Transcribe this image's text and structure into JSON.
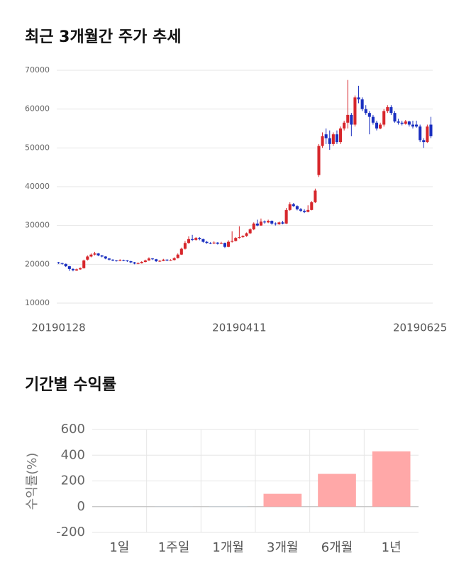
{
  "chart_data": [
    {
      "type": "candlestick",
      "title": "최근 3개월간 주가 추세",
      "categories": [
        "20190128",
        null,
        null,
        null,
        null,
        null,
        null,
        null,
        null,
        null,
        null,
        null,
        null,
        null,
        null,
        null,
        null,
        null,
        null,
        null,
        null,
        null,
        null,
        null,
        null,
        null,
        null,
        null,
        null,
        null,
        null,
        null,
        null,
        null,
        null,
        null,
        null,
        null,
        null,
        null,
        null,
        null,
        null,
        null,
        null,
        null,
        null,
        null,
        null,
        null,
        "20190411",
        null,
        null,
        null,
        null,
        null,
        null,
        null,
        null,
        null,
        null,
        null,
        null,
        null,
        null,
        null,
        null,
        null,
        null,
        null,
        null,
        null,
        null,
        null,
        null,
        null,
        null,
        null,
        null,
        null,
        null,
        null,
        null,
        null,
        null,
        null,
        null,
        null,
        null,
        null,
        null,
        null,
        null,
        null,
        null,
        null,
        null,
        null,
        null,
        null,
        "20190625",
        null,
        null,
        null
      ],
      "ohlc": [
        [
          20500,
          20600,
          20100,
          20300
        ],
        [
          20300,
          20400,
          19900,
          20100
        ],
        [
          20100,
          20200,
          19300,
          19500
        ],
        [
          19500,
          19600,
          18300,
          18800
        ],
        [
          18800,
          19000,
          18200,
          18500
        ],
        [
          18400,
          18900,
          18300,
          18700
        ],
        [
          18700,
          19200,
          18600,
          19000
        ],
        [
          19000,
          21200,
          18900,
          21000
        ],
        [
          21200,
          22300,
          21000,
          22000
        ],
        [
          22000,
          22800,
          21800,
          22500
        ],
        [
          22500,
          23200,
          22300,
          22800
        ],
        [
          22800,
          22900,
          22100,
          22300
        ],
        [
          22300,
          22400,
          21800,
          22000
        ],
        [
          22000,
          22100,
          21300,
          21500
        ],
        [
          21500,
          21600,
          21000,
          21200
        ],
        [
          21200,
          21300,
          20800,
          21000
        ],
        [
          21000,
          21100,
          20700,
          20900
        ],
        [
          20900,
          21300,
          20800,
          21100
        ],
        [
          21100,
          21200,
          20800,
          21000
        ],
        [
          21000,
          21100,
          20600,
          20800
        ],
        [
          20800,
          20900,
          20300,
          20500
        ],
        [
          20500,
          20600,
          20000,
          20200
        ],
        [
          20100,
          20500,
          20000,
          20300
        ],
        [
          20300,
          20800,
          20200,
          20600
        ],
        [
          20600,
          21200,
          20500,
          21000
        ],
        [
          21000,
          21800,
          20900,
          21500
        ],
        [
          21500,
          21600,
          21100,
          21300
        ],
        [
          21300,
          21400,
          20600,
          20800
        ],
        [
          20700,
          21100,
          20600,
          20900
        ],
        [
          20900,
          21400,
          20800,
          21200
        ],
        [
          21200,
          21300,
          20800,
          21000
        ],
        [
          21000,
          21300,
          20900,
          21100
        ],
        [
          21100,
          21800,
          21000,
          21600
        ],
        [
          21600,
          22800,
          21500,
          22500
        ],
        [
          22500,
          24300,
          22400,
          24000
        ],
        [
          24000,
          26000,
          23800,
          25500
        ],
        [
          25500,
          27200,
          25300,
          26500
        ],
        [
          26500,
          27600,
          26000,
          26300
        ],
        [
          26300,
          27000,
          26100,
          26800
        ],
        [
          26800,
          27000,
          26200,
          26500
        ],
        [
          26500,
          26600,
          25600,
          25800
        ],
        [
          25800,
          26000,
          25300,
          25500
        ],
        [
          25500,
          25700,
          25200,
          25400
        ],
        [
          25400,
          25900,
          25200,
          25600
        ],
        [
          25600,
          25700,
          25100,
          25300
        ],
        [
          25300,
          25800,
          25200,
          25500
        ],
        [
          25500,
          25600,
          24200,
          24500
        ],
        [
          24500,
          26200,
          24400,
          25800
        ],
        [
          25800,
          28500,
          25600,
          26000
        ],
        [
          26000,
          27000,
          25900,
          26800
        ],
        [
          26800,
          29800,
          26600,
          27000
        ],
        [
          27000,
          27500,
          26800,
          27300
        ],
        [
          27300,
          28200,
          27100,
          28000
        ],
        [
          28000,
          29300,
          27800,
          29000
        ],
        [
          29000,
          30800,
          28800,
          30500
        ],
        [
          30500,
          31500,
          29800,
          30000
        ],
        [
          30000,
          31800,
          29900,
          31000
        ],
        [
          31000,
          31300,
          30500,
          30800
        ],
        [
          30800,
          31500,
          30600,
          31200
        ],
        [
          31200,
          31300,
          30200,
          30500
        ],
        [
          30500,
          30800,
          30000,
          30300
        ],
        [
          30300,
          31000,
          30200,
          30800
        ],
        [
          30800,
          31200,
          30300,
          30500
        ],
        [
          30500,
          34500,
          30400,
          34000
        ],
        [
          34000,
          36000,
          33800,
          35500
        ],
        [
          35500,
          35800,
          34800,
          35000
        ],
        [
          35000,
          35200,
          33900,
          34200
        ],
        [
          34200,
          34500,
          33500,
          33800
        ],
        [
          33800,
          34200,
          33200,
          33500
        ],
        [
          33500,
          35200,
          33400,
          34000
        ],
        [
          34000,
          36300,
          33900,
          36000
        ],
        [
          36000,
          39500,
          35800,
          39000
        ],
        [
          43000,
          51000,
          42500,
          50500
        ],
        [
          50500,
          54000,
          50000,
          53000
        ],
        [
          53500,
          55000,
          51000,
          52500
        ],
        [
          52500,
          54500,
          49500,
          51000
        ],
        [
          51000,
          54000,
          50500,
          53500
        ],
        [
          53500,
          54500,
          51000,
          51500
        ],
        [
          51500,
          55500,
          51000,
          55000
        ],
        [
          55000,
          57000,
          54500,
          56500
        ],
        [
          56500,
          67500,
          55000,
          58500
        ],
        [
          58500,
          59000,
          53000,
          56000
        ],
        [
          56000,
          63500,
          55500,
          63000
        ],
        [
          63000,
          66000,
          61500,
          62500
        ],
        [
          62500,
          63000,
          59500,
          60000
        ],
        [
          60000,
          61000,
          58500,
          59000
        ],
        [
          59000,
          59500,
          53500,
          58000
        ],
        [
          58000,
          58500,
          56000,
          56500
        ],
        [
          56500,
          57000,
          54500,
          55000
        ],
        [
          55000,
          56500,
          54800,
          56000
        ],
        [
          56000,
          60000,
          55500,
          59500
        ],
        [
          59500,
          61000,
          59000,
          60500
        ],
        [
          60500,
          61000,
          58500,
          59000
        ],
        [
          59000,
          59500,
          56500,
          56800
        ],
        [
          56800,
          57500,
          56000,
          56500
        ],
        [
          56500,
          57000,
          55800,
          56200
        ],
        [
          56200,
          57200,
          56000,
          56800
        ],
        [
          56800,
          57000,
          55500,
          56000
        ],
        [
          56000,
          57000,
          55000,
          55500
        ],
        [
          56000,
          57000,
          55200,
          55500
        ],
        [
          55500,
          56000,
          51500,
          52000
        ],
        [
          52000,
          52500,
          50000,
          51500
        ],
        [
          51500,
          56000,
          51300,
          55500
        ],
        [
          56000,
          58000,
          52500,
          53000
        ]
      ],
      "up_color": "#d7262b",
      "down_color": "#1a2fc0",
      "ylim": [
        10000,
        70000
      ],
      "yticks": [
        10000,
        20000,
        30000,
        40000,
        50000,
        60000,
        70000
      ],
      "grid": true
    },
    {
      "type": "bar",
      "title": "기간별 수익률",
      "ylabel": "수익률(%)",
      "categories": [
        "1일",
        "1주일",
        "1개월",
        "3개월",
        "6개월",
        "1년"
      ],
      "values": [
        0,
        -1,
        -2,
        100,
        255,
        430
      ],
      "color": "#ffa8a8",
      "negative_color": "#b8cfe0",
      "ylim": [
        -200,
        600
      ],
      "yticks": [
        -200,
        0,
        200,
        400,
        600
      ],
      "grid": true
    }
  ]
}
